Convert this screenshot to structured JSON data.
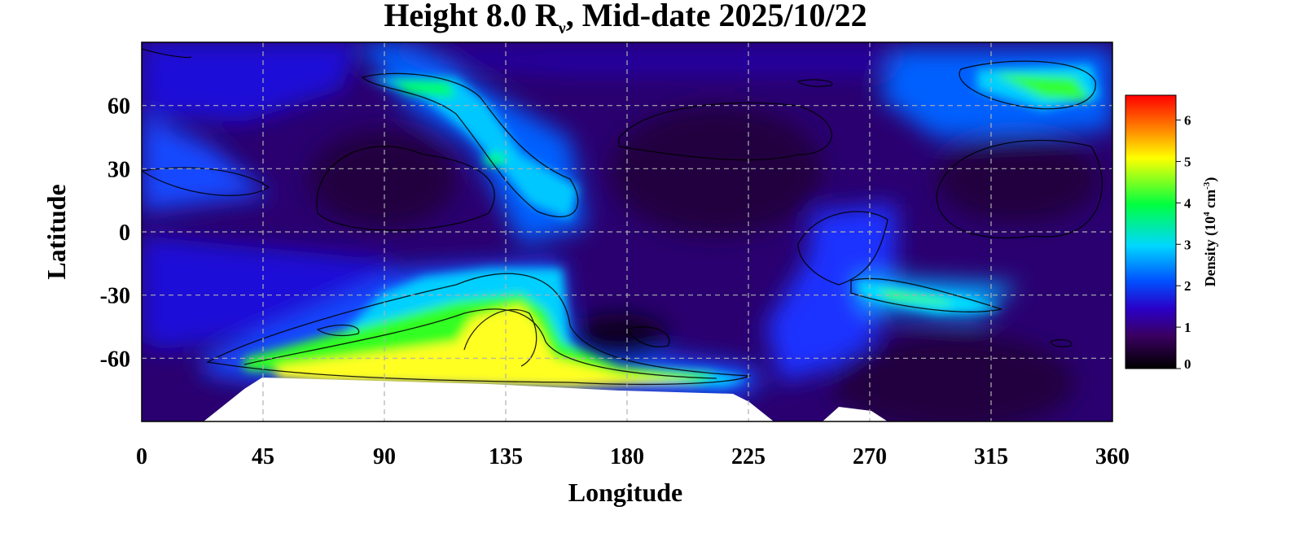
{
  "chart_data": {
    "type": "heatmap",
    "title": {
      "prefix": "Height 8.0 R",
      "subscript": "ν",
      "suffix": ", Mid-date 2025/10/22"
    },
    "xlabel": "Longitude",
    "ylabel": "Latitude",
    "xlim": [
      0,
      360
    ],
    "ylim": [
      -90,
      90
    ],
    "x_ticks": [
      0,
      45,
      90,
      135,
      180,
      225,
      270,
      315,
      360
    ],
    "y_ticks": [
      60,
      30,
      0,
      -30,
      -60
    ],
    "grid": true,
    "colorbar": {
      "label_prefix": "Density (10",
      "label_sup1": "4",
      "label_mid": " cm",
      "label_sup2": "-3",
      "label_suffix": ")",
      "range": [
        0,
        6.6
      ],
      "ticks": [
        0,
        1,
        2,
        3,
        4,
        5,
        6
      ],
      "colors": [
        "#000000",
        "#3a0060",
        "#2a00c8",
        "#0050ff",
        "#00d8ff",
        "#00ff40",
        "#ffff00",
        "#ff8000",
        "#ff0000"
      ]
    },
    "features": [
      {
        "lon": 132,
        "lat": -52,
        "density": 5.4
      },
      {
        "lon": 100,
        "lat": -62,
        "density": 4.8
      },
      {
        "lon": 175,
        "lat": -70,
        "density": 4.9
      },
      {
        "lon": 105,
        "lat": 70,
        "density": 3.6
      },
      {
        "lon": 335,
        "lat": 70,
        "density": 3.6
      },
      {
        "lon": 285,
        "lat": -31,
        "density": 3.3
      },
      {
        "lon": 130,
        "lat": 34,
        "density": 2.8
      },
      {
        "lon": 20,
        "lat": 40,
        "density": 2.0
      },
      {
        "lon": 245,
        "lat": -65,
        "density": 2.5
      },
      {
        "lon": 80,
        "lat": 20,
        "density": 0.4
      },
      {
        "lon": 210,
        "lat": 25,
        "density": 0.5
      },
      {
        "lon": 320,
        "lat": 20,
        "density": 0.5
      }
    ],
    "no_data_region": "south polar gap (white)"
  }
}
